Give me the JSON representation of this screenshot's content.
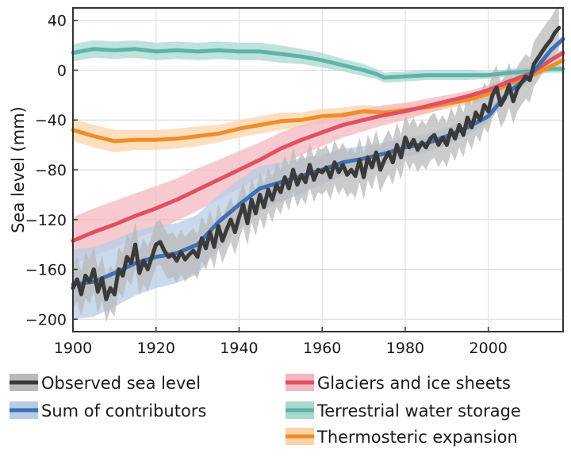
{
  "chart_data": {
    "type": "line",
    "title": "",
    "xlabel": "",
    "ylabel": "Sea level (mm)",
    "xlim": [
      1900,
      2018
    ],
    "ylim": [
      -210,
      50
    ],
    "grid": true,
    "x_ticks": [
      "1900",
      "1920",
      "1940",
      "1960",
      "1980",
      "2000"
    ],
    "y_ticks": [
      "40",
      "0",
      "−40",
      "−80",
      "−120",
      "−160",
      "−200"
    ],
    "legend_position": "bottom",
    "series": [
      {
        "name": "Terrestrial water storage",
        "color": "#5fb3a8",
        "band_color": "#a8d8d0",
        "x": [
          1900,
          1905,
          1910,
          1915,
          1920,
          1925,
          1930,
          1935,
          1940,
          1945,
          1950,
          1955,
          1960,
          1965,
          1970,
          1973,
          1975,
          1980,
          1985,
          1990,
          1995,
          2000,
          2005,
          2010,
          2015,
          2018
        ],
        "y": [
          14,
          17,
          16,
          17,
          15,
          16,
          15,
          16,
          15,
          15,
          13,
          11,
          8,
          4,
          0,
          -3,
          -6,
          -5,
          -4,
          -4,
          -4,
          -4,
          -2,
          -1,
          1,
          1
        ],
        "uncertainty": [
          7,
          7,
          7,
          7,
          7,
          7,
          7,
          7,
          7,
          7,
          7,
          6,
          6,
          5,
          5,
          4,
          4,
          4,
          4,
          4,
          4,
          3,
          3,
          3,
          3,
          3
        ]
      },
      {
        "name": "Thermosteric expansion",
        "color": "#f28c28",
        "band_color": "#fcd3a8",
        "x": [
          1900,
          1905,
          1910,
          1915,
          1920,
          1925,
          1930,
          1935,
          1940,
          1945,
          1950,
          1955,
          1960,
          1965,
          1970,
          1975,
          1980,
          1985,
          1990,
          1995,
          2000,
          2005,
          2010,
          2015,
          2018
        ],
        "y": [
          -48,
          -53,
          -57,
          -56,
          -56,
          -55,
          -53,
          -51,
          -47,
          -44,
          -41,
          -40,
          -37,
          -36,
          -33,
          -34,
          -32,
          -30,
          -27,
          -24,
          -19,
          -11,
          -5,
          3,
          8
        ],
        "uncertainty": [
          9,
          9,
          9,
          8,
          8,
          8,
          8,
          7,
          7,
          7,
          7,
          6,
          6,
          6,
          5,
          5,
          5,
          5,
          4,
          4,
          4,
          3,
          3,
          3,
          3
        ]
      },
      {
        "name": "Glaciers and ice sheets",
        "color": "#e05060",
        "band_color": "#f4b8c0",
        "x": [
          1900,
          1905,
          1910,
          1915,
          1920,
          1925,
          1930,
          1935,
          1940,
          1945,
          1950,
          1955,
          1960,
          1965,
          1970,
          1975,
          1980,
          1985,
          1990,
          1995,
          2000,
          2005,
          2010,
          2015,
          2018
        ],
        "y": [
          -137,
          -130,
          -124,
          -117,
          -111,
          -104,
          -96,
          -88,
          -80,
          -72,
          -63,
          -56,
          -50,
          -44,
          -40,
          -36,
          -33,
          -29,
          -25,
          -21,
          -16,
          -9,
          -3,
          8,
          14
        ],
        "uncertainty": [
          19,
          19,
          19,
          18,
          18,
          17,
          17,
          16,
          15,
          14,
          13,
          12,
          11,
          10,
          9,
          8,
          7,
          6,
          5,
          4,
          4,
          3,
          3,
          3,
          3
        ]
      },
      {
        "name": "Sum of contributors",
        "color": "#3f6fb5",
        "band_color": "#b8cce6",
        "x": [
          1900,
          1905,
          1910,
          1915,
          1920,
          1925,
          1930,
          1935,
          1940,
          1945,
          1950,
          1955,
          1960,
          1965,
          1970,
          1975,
          1980,
          1985,
          1990,
          1995,
          2000,
          2005,
          2010,
          2015,
          2018
        ],
        "y": [
          -172,
          -170,
          -163,
          -155,
          -150,
          -147,
          -140,
          -122,
          -108,
          -95,
          -90,
          -85,
          -80,
          -74,
          -71,
          -67,
          -62,
          -59,
          -53,
          -46,
          -37,
          -17,
          -5,
          16,
          25
        ],
        "uncertainty": [
          28,
          28,
          27,
          26,
          25,
          24,
          24,
          22,
          20,
          18,
          16,
          14,
          12,
          11,
          10,
          9,
          8,
          7,
          7,
          6,
          5,
          4,
          4,
          3,
          3
        ]
      },
      {
        "name": "Observed sea level",
        "color": "#3a3a3a",
        "band_color": "#b9b9b9",
        "x": [
          1900,
          1901,
          1902,
          1903,
          1904,
          1905,
          1906,
          1907,
          1908,
          1909,
          1910,
          1911,
          1912,
          1913,
          1914,
          1915,
          1916,
          1917,
          1918,
          1919,
          1920,
          1921,
          1922,
          1923,
          1924,
          1925,
          1926,
          1927,
          1928,
          1929,
          1930,
          1931,
          1932,
          1933,
          1934,
          1935,
          1936,
          1937,
          1938,
          1939,
          1940,
          1941,
          1942,
          1943,
          1944,
          1945,
          1946,
          1947,
          1948,
          1949,
          1950,
          1951,
          1952,
          1953,
          1954,
          1955,
          1956,
          1957,
          1958,
          1959,
          1960,
          1961,
          1962,
          1963,
          1964,
          1965,
          1966,
          1967,
          1968,
          1969,
          1970,
          1971,
          1972,
          1973,
          1974,
          1975,
          1976,
          1977,
          1978,
          1979,
          1980,
          1981,
          1982,
          1983,
          1984,
          1985,
          1986,
          1987,
          1988,
          1989,
          1990,
          1991,
          1992,
          1993,
          1994,
          1995,
          1996,
          1997,
          1998,
          1999,
          2000,
          2001,
          2002,
          2003,
          2004,
          2005,
          2006,
          2007,
          2008,
          2009,
          2010,
          2011,
          2012,
          2013,
          2014,
          2015,
          2016,
          2017
        ],
        "y": [
          -175,
          -168,
          -180,
          -165,
          -170,
          -160,
          -178,
          -167,
          -184,
          -175,
          -180,
          -160,
          -165,
          -150,
          -155,
          -140,
          -163,
          -153,
          -160,
          -150,
          -140,
          -138,
          -145,
          -150,
          -148,
          -153,
          -146,
          -152,
          -148,
          -145,
          -150,
          -135,
          -143,
          -130,
          -142,
          -125,
          -137,
          -128,
          -120,
          -130,
          -118,
          -108,
          -123,
          -104,
          -115,
          -100,
          -110,
          -96,
          -104,
          -92,
          -98,
          -86,
          -95,
          -80,
          -92,
          -84,
          -90,
          -76,
          -88,
          -80,
          -82,
          -78,
          -86,
          -74,
          -82,
          -76,
          -84,
          -80,
          -85,
          -72,
          -86,
          -70,
          -78,
          -66,
          -80,
          -72,
          -66,
          -74,
          -60,
          -70,
          -54,
          -62,
          -56,
          -64,
          -58,
          -62,
          -55,
          -52,
          -60,
          -54,
          -60,
          -48,
          -55,
          -44,
          -52,
          -38,
          -46,
          -34,
          -40,
          -28,
          -33,
          -20,
          -14,
          -28,
          -22,
          -12,
          -25,
          -15,
          -10,
          -5,
          -8,
          5,
          10,
          15,
          20,
          24,
          30,
          34
        ],
        "uncertainty": 18
      }
    ]
  }
}
